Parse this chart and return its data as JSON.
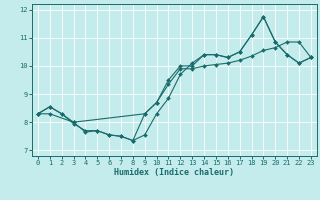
{
  "xlabel": "Humidex (Indice chaleur)",
  "bg_color": "#c5ecec",
  "line_color": "#1a6b6b",
  "grid_color": "#ffffff",
  "xlim": [
    -0.5,
    23.5
  ],
  "ylim": [
    6.8,
    12.2
  ],
  "yticks": [
    7,
    8,
    9,
    10,
    11,
    12
  ],
  "xticks": [
    0,
    1,
    2,
    3,
    4,
    5,
    6,
    7,
    8,
    9,
    10,
    11,
    12,
    13,
    14,
    15,
    16,
    17,
    18,
    19,
    20,
    21,
    22,
    23
  ],
  "series1_x": [
    0,
    1,
    2,
    3,
    4,
    5,
    6,
    7,
    8,
    9,
    10,
    11,
    12,
    13,
    14,
    15,
    16,
    17,
    18,
    19,
    20,
    21,
    22,
    23
  ],
  "series1_y": [
    8.3,
    8.55,
    8.3,
    7.95,
    7.7,
    7.7,
    7.55,
    7.5,
    7.35,
    7.55,
    8.3,
    8.85,
    9.7,
    10.1,
    10.4,
    10.4,
    10.3,
    10.5,
    11.1,
    11.75,
    10.85,
    10.4,
    10.1,
    10.3
  ],
  "series2_x": [
    0,
    1,
    2,
    3,
    4,
    5,
    6,
    7,
    8,
    9,
    10,
    11,
    12,
    13,
    14,
    15,
    16,
    17,
    18,
    19,
    20,
    21,
    22,
    23
  ],
  "series2_y": [
    8.3,
    8.55,
    8.3,
    8.0,
    7.65,
    7.7,
    7.55,
    7.5,
    7.35,
    8.3,
    8.7,
    9.5,
    10.0,
    10.0,
    10.4,
    10.4,
    10.3,
    10.5,
    11.1,
    11.75,
    10.85,
    10.4,
    10.1,
    10.3
  ],
  "series3_x": [
    0,
    1,
    3,
    9,
    10,
    11,
    12,
    13,
    14,
    15,
    16,
    17,
    18,
    19,
    20,
    21,
    22,
    23
  ],
  "series3_y": [
    8.3,
    8.3,
    8.0,
    8.3,
    8.7,
    9.35,
    9.9,
    9.9,
    10.0,
    10.05,
    10.1,
    10.2,
    10.35,
    10.55,
    10.65,
    10.85,
    10.85,
    10.3
  ]
}
